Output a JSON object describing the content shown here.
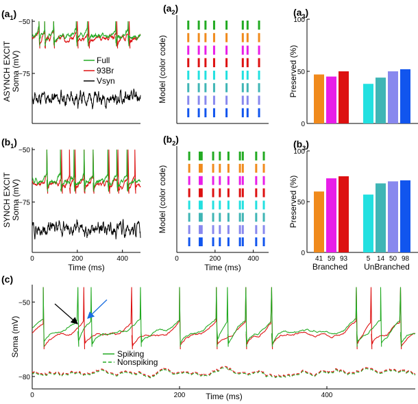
{
  "figure_title": "",
  "rows": {
    "asynch": {
      "line1": "ASYNCH EXCIT",
      "line2": "Soma (mV)"
    },
    "synch": {
      "line1": "SYNCH EXCIT",
      "line2": "Soma (mV)"
    },
    "c": {
      "ylabel": "Soma (mV)"
    }
  },
  "legend_top": [
    {
      "label": "Full",
      "color": "#22aa22"
    },
    {
      "label": "93Br",
      "color": "#dd1111"
    },
    {
      "label": "Vsyn",
      "color": "#000000"
    }
  ],
  "legend_c": [
    {
      "label": "Spiking",
      "style": "solid"
    },
    {
      "label": "Nonspiking",
      "style": "dashed"
    }
  ],
  "colors": {
    "green": "#22aa22",
    "red": "#dd1111",
    "black": "#000000",
    "blue_arrow": "#1a6ee0"
  },
  "chart_data": [
    {
      "id": "a1",
      "type": "line",
      "panel_label": "(a",
      "panel_sub": "1",
      "panel_close": ")",
      "title": "",
      "xlabel": "",
      "ylabel": "ASYNCH EXCIT Soma (mV)",
      "xlim": [
        0,
        480
      ],
      "ylim": [
        -99,
        -49
      ],
      "xticks": [],
      "yticks": [
        {
          "v": -50,
          "label": "−50"
        },
        {
          "v": -75,
          "label": "−75"
        }
      ],
      "spike_times_full": [
        30,
        55,
        95,
        195,
        245,
        370,
        425
      ],
      "spike_times_93br": [
        30,
        55,
        95,
        200,
        250,
        375,
        430
      ],
      "baseline_mv": -58,
      "vsyn_baseline_mv": -87
    },
    {
      "id": "a2",
      "type": "raster",
      "panel_label": "(a",
      "panel_sub": "2",
      "panel_close": ")",
      "xlabel": "",
      "ylabel": "Model (color code)",
      "xlim": [
        0,
        480
      ],
      "xticks": [],
      "rows": [
        {
          "model": "Full",
          "color": "#22aa22",
          "spikes": [
            60,
            115,
            150,
            195,
            260,
            345,
            370,
            430
          ]
        },
        {
          "model": "Br41",
          "color": "#f08a1c",
          "spikes": [
            60,
            115,
            150,
            195,
            260,
            345,
            370,
            430
          ]
        },
        {
          "model": "Br59",
          "color": "#e81ee8",
          "spikes": [
            60,
            115,
            150,
            195,
            260,
            345,
            370,
            430
          ]
        },
        {
          "model": "Br93",
          "color": "#dd1111",
          "spikes": [
            60,
            115,
            150,
            195,
            260,
            345,
            370,
            430
          ]
        },
        {
          "model": "Un5",
          "color": "#22e0e0",
          "spikes": [
            60,
            115,
            150,
            195,
            260,
            345,
            370,
            430
          ]
        },
        {
          "model": "Un14",
          "color": "#3fb5b5",
          "spikes": [
            60,
            115,
            150,
            195,
            260,
            345,
            370,
            430
          ]
        },
        {
          "model": "Un50",
          "color": "#8888ee",
          "spikes": [
            60,
            115,
            150,
            195,
            260,
            345,
            370,
            430
          ]
        },
        {
          "model": "Un98",
          "color": "#1155ee",
          "spikes": [
            60,
            115,
            150,
            195,
            260,
            345,
            370,
            430
          ]
        }
      ]
    },
    {
      "id": "a3",
      "type": "bar",
      "panel_label": "(a",
      "panel_sub": "3",
      "panel_close": ")",
      "title": "",
      "xlabel": "",
      "ylabel": "Preserved (%)",
      "ylim": [
        0,
        100
      ],
      "yticks": [
        {
          "v": 0,
          "label": "0"
        },
        {
          "v": 50,
          "label": "50"
        },
        {
          "v": 100,
          "label": "100"
        }
      ],
      "categories": [
        "41",
        "59",
        "93",
        "5",
        "14",
        "50",
        "98"
      ],
      "values": [
        47,
        45,
        50,
        38,
        44,
        50,
        52
      ],
      "colors": [
        "#f08a1c",
        "#e81ee8",
        "#dd1111",
        "#22e0e0",
        "#3fb5b5",
        "#8888ee",
        "#1155ee"
      ],
      "show_categories": false,
      "groups": []
    },
    {
      "id": "b1",
      "type": "line",
      "panel_label": "(b",
      "panel_sub": "1",
      "panel_close": ")",
      "title": "",
      "xlabel": "Time (ms)",
      "ylabel": "SYNCH EXCIT Soma (mV)",
      "xlim": [
        0,
        480
      ],
      "ylim": [
        -99,
        -49
      ],
      "xticks": [
        {
          "v": 0,
          "label": "0"
        },
        {
          "v": 200,
          "label": "200"
        },
        {
          "v": 400,
          "label": "400"
        }
      ],
      "yticks": [
        {
          "v": -50,
          "label": "−50"
        },
        {
          "v": -75,
          "label": "−75"
        }
      ],
      "spike_times_full": [
        65,
        125,
        185,
        230,
        270,
        335,
        375,
        420
      ],
      "spike_times_93br": [
        65,
        130,
        165,
        190,
        230,
        270,
        340,
        380,
        425,
        455
      ],
      "baseline_mv": -66,
      "vsyn_baseline_mv": -88
    },
    {
      "id": "b2",
      "type": "raster",
      "panel_label": "(b",
      "panel_sub": "2",
      "panel_close": ")",
      "xlabel": "Time (ms)",
      "ylabel": "Model (color code)",
      "xlim": [
        0,
        480
      ],
      "xticks": [
        {
          "v": 0,
          "label": "0"
        },
        {
          "v": 200,
          "label": "200"
        },
        {
          "v": 400,
          "label": "400"
        }
      ],
      "rows": [
        {
          "model": "Full",
          "color": "#22aa22",
          "spikes": [
            65,
            120,
            130,
            190,
            225,
            270,
            330,
            345,
            415,
            455
          ]
        },
        {
          "model": "Br41",
          "color": "#f08a1c",
          "spikes": [
            65,
            120,
            130,
            190,
            225,
            270,
            330,
            345,
            415,
            455
          ]
        },
        {
          "model": "Br59",
          "color": "#e81ee8",
          "spikes": [
            65,
            120,
            130,
            190,
            225,
            270,
            330,
            345,
            415,
            455
          ]
        },
        {
          "model": "Br93",
          "color": "#dd1111",
          "spikes": [
            65,
            120,
            130,
            190,
            225,
            270,
            330,
            345,
            415,
            455
          ]
        },
        {
          "model": "Un5",
          "color": "#22e0e0",
          "spikes": [
            65,
            120,
            130,
            190,
            225,
            270,
            330,
            345,
            415,
            455
          ]
        },
        {
          "model": "Un14",
          "color": "#3fb5b5",
          "spikes": [
            65,
            120,
            130,
            190,
            225,
            270,
            330,
            345,
            415,
            455
          ]
        },
        {
          "model": "Un50",
          "color": "#8888ee",
          "spikes": [
            65,
            120,
            130,
            190,
            225,
            270,
            330,
            345,
            415,
            455
          ]
        },
        {
          "model": "Un98",
          "color": "#1155ee",
          "spikes": [
            65,
            120,
            130,
            190,
            225,
            270,
            330,
            345,
            415,
            455
          ]
        }
      ]
    },
    {
      "id": "b3",
      "type": "bar",
      "panel_label": "(b",
      "panel_sub": "3",
      "panel_close": ")",
      "title": "",
      "xlabel": "",
      "ylabel": "Preserved (%)",
      "ylim": [
        0,
        100
      ],
      "yticks": [
        {
          "v": 0,
          "label": "0"
        },
        {
          "v": 50,
          "label": "50"
        },
        {
          "v": 100,
          "label": "100"
        }
      ],
      "categories": [
        "41",
        "59",
        "93",
        "5",
        "14",
        "50",
        "98"
      ],
      "values": [
        60,
        73,
        75,
        57,
        68,
        70,
        71
      ],
      "colors": [
        "#f08a1c",
        "#e81ee8",
        "#dd1111",
        "#22e0e0",
        "#3fb5b5",
        "#8888ee",
        "#1155ee"
      ],
      "show_categories": true,
      "groups": [
        "Branched",
        "UnBranched"
      ]
    },
    {
      "id": "c",
      "type": "line",
      "panel_label": "(c)",
      "panel_sub": "",
      "panel_close": "",
      "title": "",
      "xlabel": "Time (ms)",
      "ylabel": "Soma (mV)",
      "xlim": [
        0,
        520
      ],
      "ylim": [
        -85,
        -43
      ],
      "xticks": [
        {
          "v": 0,
          "label": "0"
        },
        {
          "v": 200,
          "label": "200"
        },
        {
          "v": 400,
          "label": "400"
        }
      ],
      "yticks": [
        {
          "v": -50,
          "label": "−50"
        },
        {
          "v": -80,
          "label": "−80"
        }
      ],
      "spike_times_green": [
        15,
        62,
        80,
        147,
        200,
        250,
        265,
        290,
        325,
        440,
        473,
        500
      ],
      "spike_times_red": [
        15,
        70,
        135,
        200,
        250,
        290,
        325,
        440,
        460,
        500
      ],
      "baseline_mv": -62,
      "nonspiking_baseline_mv": -79
    }
  ]
}
